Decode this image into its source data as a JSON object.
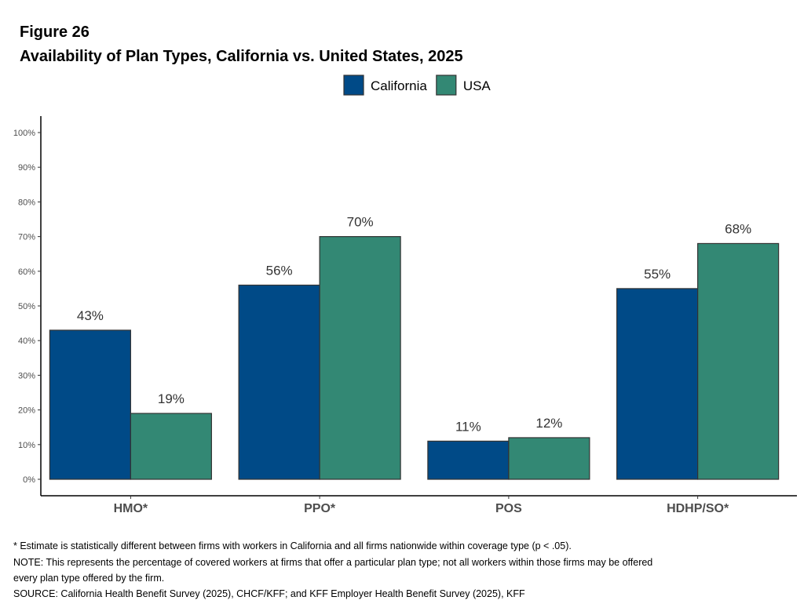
{
  "figure_label": "Figure 26",
  "chart_data": {
    "type": "bar",
    "title": "Availability of Plan Types, California vs. United States, 2025",
    "categories": [
      "HMO*",
      "PPO*",
      "POS",
      "HDHP/SO*"
    ],
    "series": [
      {
        "name": "California",
        "color": "#004A87",
        "values": [
          43,
          56,
          11,
          55
        ],
        "labels": [
          "43%",
          "56%",
          "11%",
          "55%"
        ]
      },
      {
        "name": "USA",
        "color": "#338874",
        "values": [
          19,
          70,
          12,
          68
        ],
        "labels": [
          "19%",
          "70%",
          "12%",
          "68%"
        ]
      }
    ],
    "ylim": [
      0,
      100
    ],
    "yticks": [
      0,
      10,
      20,
      30,
      40,
      50,
      60,
      70,
      80,
      90,
      100
    ],
    "ytick_labels": [
      "0%",
      "10%",
      "20%",
      "30%",
      "40%",
      "50%",
      "60%",
      "70%",
      "80%",
      "90%",
      "100%"
    ],
    "xlabel": "",
    "ylabel": "",
    "grid": false,
    "legend_position": "top"
  },
  "notes": [
    "* Estimate is statistically different between firms with workers in California and all firms nationwide within coverage type (p < .05).",
    "NOTE: This represents the percentage of covered workers at firms that offer a particular plan type; not all workers within those firms may be offered",
    "every plan type offered by the firm.",
    "SOURCE: California Health Benefit Survey (2025), CHCF/KFF; and KFF Employer Health Benefit Survey (2025), KFF"
  ]
}
